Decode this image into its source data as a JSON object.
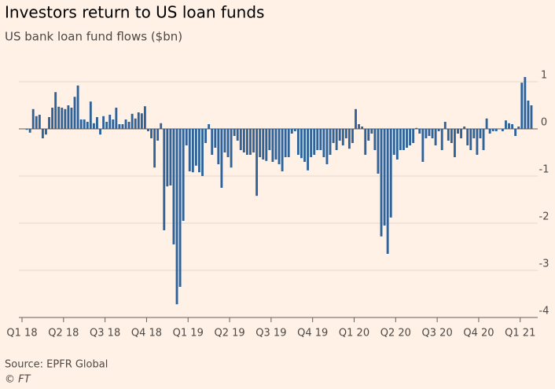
{
  "chart_data": {
    "type": "bar",
    "title": "Investors return to US loan funds",
    "subtitle": "US bank loan fund flows ($bn)",
    "source": "Source: EPFR Global",
    "credit": "© FT",
    "color": "#2e6299",
    "grid": true,
    "ylim": [
      -4,
      1.2
    ],
    "yticks": [
      1,
      0,
      -1,
      -2,
      -3,
      -4
    ],
    "categories": [
      "Q1 18",
      null,
      null,
      null,
      null,
      null,
      null,
      null,
      null,
      null,
      null,
      null,
      null,
      "Q2 18",
      null,
      null,
      null,
      null,
      null,
      null,
      null,
      null,
      null,
      null,
      null,
      null,
      "Q3 18",
      null,
      null,
      null,
      null,
      null,
      null,
      null,
      null,
      null,
      null,
      null,
      null,
      "Q4 18",
      null,
      null,
      null,
      null,
      null,
      null,
      null,
      null,
      null,
      null,
      null,
      null,
      "Q1 19",
      null,
      null,
      null,
      null,
      null,
      null,
      null,
      null,
      null,
      null,
      null,
      null,
      "Q2 19",
      null,
      null,
      null,
      null,
      null,
      null,
      null,
      null,
      null,
      null,
      null,
      null,
      "Q3 19",
      null,
      null,
      null,
      null,
      null,
      null,
      null,
      null,
      null,
      null,
      null,
      null,
      "Q4 19",
      null,
      null,
      null,
      null,
      null,
      null,
      null,
      null,
      null,
      null,
      null,
      null,
      "Q1 20",
      null,
      null,
      null,
      null,
      null,
      null,
      null,
      null,
      null,
      null,
      null,
      null,
      "Q2 20",
      null,
      null,
      null,
      null,
      null,
      null,
      null,
      null,
      null,
      null,
      null,
      null,
      "Q3 20",
      null,
      null,
      null,
      null,
      null,
      null,
      null,
      null,
      null,
      null,
      null,
      null,
      "Q4 20",
      null,
      null,
      null,
      null,
      null,
      null,
      null,
      null,
      null,
      null,
      null,
      null,
      "Q1 21",
      null,
      null,
      null
    ],
    "values": [
      0.0,
      -0.02,
      -0.08,
      0.42,
      0.27,
      0.3,
      -0.2,
      -0.12,
      0.25,
      0.45,
      0.78,
      0.47,
      0.45,
      0.42,
      0.5,
      0.45,
      0.68,
      0.92,
      0.2,
      0.2,
      0.15,
      0.58,
      0.12,
      0.25,
      -0.12,
      0.27,
      0.15,
      0.3,
      0.2,
      0.45,
      0.1,
      0.1,
      0.2,
      0.15,
      0.32,
      0.22,
      0.35,
      0.33,
      0.48,
      -0.05,
      -0.2,
      -0.82,
      -0.25,
      0.12,
      -2.15,
      -1.22,
      -1.2,
      -2.45,
      -3.72,
      -3.35,
      -1.95,
      -0.35,
      -0.9,
      -0.92,
      -0.78,
      -0.92,
      -1.0,
      -0.3,
      0.1,
      -0.55,
      -0.4,
      -0.75,
      -1.25,
      -0.5,
      -0.6,
      -0.82,
      -0.15,
      -0.25,
      -0.45,
      -0.5,
      -0.55,
      -0.55,
      -0.5,
      -1.42,
      -0.6,
      -0.65,
      -0.68,
      -0.45,
      -0.7,
      -0.65,
      -0.75,
      -0.9,
      -0.6,
      -0.6,
      -0.1,
      -0.05,
      -0.55,
      -0.62,
      -0.7,
      -0.88,
      -0.6,
      -0.55,
      -0.45,
      -0.45,
      -0.6,
      -0.75,
      -0.55,
      -0.3,
      -0.45,
      -0.25,
      -0.35,
      -0.2,
      -0.42,
      -0.3,
      0.42,
      0.1,
      0.05,
      -0.55,
      -0.25,
      -0.1,
      -0.45,
      -0.95,
      -2.28,
      -2.05,
      -2.65,
      -1.88,
      -0.55,
      -0.65,
      -0.45,
      -0.45,
      -0.4,
      -0.35,
      -0.3,
      0.02,
      -0.1,
      -0.7,
      -0.2,
      -0.15,
      -0.2,
      -0.35,
      -0.05,
      -0.45,
      0.15,
      -0.25,
      -0.3,
      -0.6,
      -0.1,
      -0.2,
      0.05,
      -0.35,
      -0.45,
      -0.2,
      -0.55,
      -0.2,
      -0.45,
      0.22,
      -0.1,
      -0.05,
      -0.05,
      0.0,
      -0.05,
      0.18,
      0.12,
      0.1,
      -0.15,
      0.05,
      0.98,
      1.1,
      0.6,
      0.5
    ]
  }
}
